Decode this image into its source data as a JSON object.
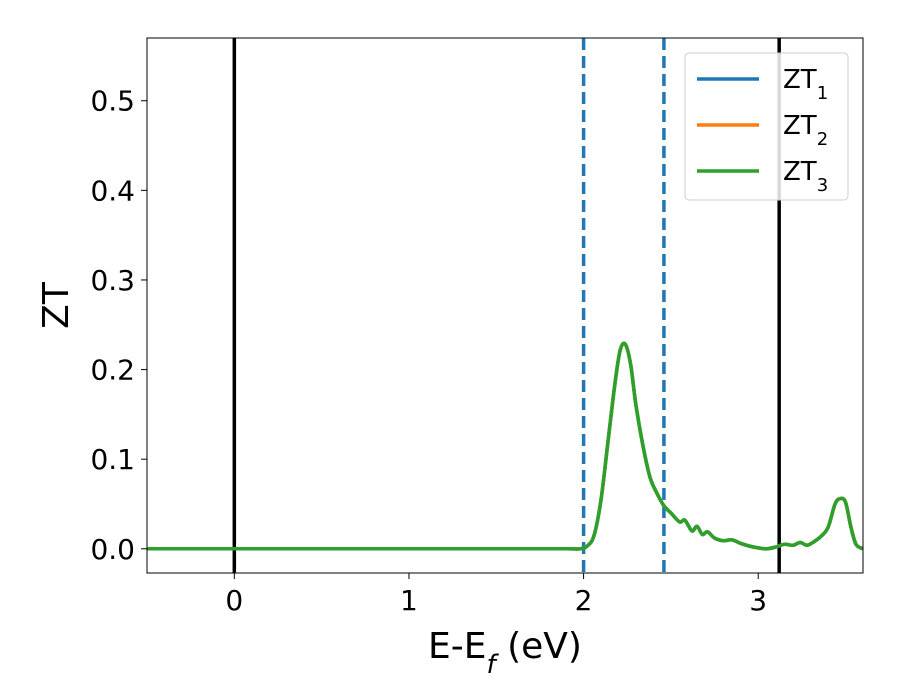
{
  "chart_data": {
    "type": "line",
    "xlabel": "E-E",
    "xlabel_sub": "f",
    "xlabel_unit": " (eV)",
    "ylabel": "ZT",
    "xlim": [
      -0.5,
      3.6
    ],
    "ylim": [
      -0.027,
      0.57
    ],
    "xticks": [
      0,
      1,
      2,
      3
    ],
    "yticks": [
      0.0,
      0.1,
      0.2,
      0.3,
      0.4,
      0.5
    ],
    "xtick_labels": [
      "0",
      "1",
      "2",
      "3"
    ],
    "ytick_labels": [
      "0.0",
      "0.1",
      "0.2",
      "0.3",
      "0.4",
      "0.5"
    ],
    "grid": false,
    "legend_position": "top-right",
    "vlines": [
      {
        "x": 0.0,
        "style": "solid",
        "color": "#000000"
      },
      {
        "x": 3.12,
        "style": "solid",
        "color": "#000000"
      },
      {
        "x": 2.0,
        "style": "dashed",
        "color": "#1f77b4"
      },
      {
        "x": 2.46,
        "style": "dashed",
        "color": "#1f77b4"
      }
    ],
    "legend": [
      {
        "label": "ZT",
        "sub": "1",
        "color": "#1f77b4"
      },
      {
        "label": "ZT",
        "sub": "2",
        "color": "#ff7f0e"
      },
      {
        "label": "ZT",
        "sub": "3",
        "color": "#2ca02c"
      }
    ],
    "series": [
      {
        "name": "ZT1",
        "color": "#1f77b4",
        "x": [
          -0.5,
          0.0,
          0.5,
          1.0,
          1.5,
          1.9,
          1.98,
          2.02,
          2.06,
          2.1,
          2.14,
          2.18,
          2.21,
          2.24,
          2.27,
          2.3,
          2.34,
          2.38,
          2.42,
          2.46,
          2.5,
          2.55,
          2.58,
          2.62,
          2.65,
          2.68,
          2.71,
          2.75,
          2.8,
          2.85,
          2.9,
          2.95,
          3.0,
          3.05,
          3.1,
          3.15,
          3.2,
          3.24,
          3.28,
          3.32,
          3.36,
          3.4,
          3.44,
          3.47,
          3.5,
          3.53,
          3.56,
          3.6
        ],
        "values": [
          0,
          0,
          0,
          0,
          0,
          0,
          0.0,
          0.003,
          0.015,
          0.055,
          0.12,
          0.185,
          0.222,
          0.228,
          0.205,
          0.16,
          0.115,
          0.08,
          0.062,
          0.048,
          0.04,
          0.03,
          0.032,
          0.02,
          0.025,
          0.016,
          0.019,
          0.012,
          0.009,
          0.01,
          0.006,
          0.003,
          0.001,
          0.0,
          0.002,
          0.005,
          0.004,
          0.007,
          0.004,
          0.008,
          0.014,
          0.024,
          0.05,
          0.056,
          0.052,
          0.025,
          0.005,
          0.0
        ]
      },
      {
        "name": "ZT2",
        "color": "#ff7f0e",
        "x": [
          -0.5,
          0.0,
          0.5,
          1.0,
          1.5,
          1.9,
          1.98,
          2.02,
          2.06,
          2.1,
          2.14,
          2.18,
          2.21,
          2.24,
          2.27,
          2.3,
          2.34,
          2.38,
          2.42,
          2.46,
          2.5,
          2.55,
          2.58,
          2.62,
          2.65,
          2.68,
          2.71,
          2.75,
          2.8,
          2.85,
          2.9,
          2.95,
          3.0,
          3.05,
          3.1,
          3.15,
          3.2,
          3.24,
          3.28,
          3.32,
          3.36,
          3.4,
          3.44,
          3.47,
          3.5,
          3.53,
          3.56,
          3.6
        ],
        "values": [
          0,
          0,
          0,
          0,
          0,
          0,
          0.0,
          0.003,
          0.015,
          0.055,
          0.12,
          0.185,
          0.222,
          0.228,
          0.205,
          0.16,
          0.115,
          0.08,
          0.062,
          0.048,
          0.04,
          0.03,
          0.032,
          0.02,
          0.025,
          0.016,
          0.019,
          0.012,
          0.009,
          0.01,
          0.006,
          0.003,
          0.001,
          0.0,
          0.002,
          0.005,
          0.004,
          0.007,
          0.004,
          0.008,
          0.014,
          0.024,
          0.05,
          0.056,
          0.052,
          0.025,
          0.005,
          0.0
        ]
      },
      {
        "name": "ZT3",
        "color": "#2ca02c",
        "x": [
          -0.5,
          0.0,
          0.5,
          1.0,
          1.5,
          1.9,
          1.98,
          2.02,
          2.06,
          2.1,
          2.14,
          2.18,
          2.21,
          2.24,
          2.27,
          2.3,
          2.34,
          2.38,
          2.42,
          2.46,
          2.5,
          2.55,
          2.58,
          2.62,
          2.65,
          2.68,
          2.71,
          2.75,
          2.8,
          2.85,
          2.9,
          2.95,
          3.0,
          3.05,
          3.1,
          3.15,
          3.2,
          3.24,
          3.28,
          3.32,
          3.36,
          3.4,
          3.44,
          3.47,
          3.5,
          3.53,
          3.56,
          3.6
        ],
        "values": [
          0,
          0,
          0,
          0,
          0,
          0,
          0.0,
          0.003,
          0.015,
          0.055,
          0.12,
          0.185,
          0.222,
          0.228,
          0.205,
          0.16,
          0.115,
          0.08,
          0.062,
          0.048,
          0.04,
          0.03,
          0.032,
          0.02,
          0.025,
          0.016,
          0.019,
          0.012,
          0.009,
          0.01,
          0.006,
          0.003,
          0.001,
          0.0,
          0.002,
          0.005,
          0.004,
          0.007,
          0.004,
          0.008,
          0.014,
          0.024,
          0.05,
          0.056,
          0.052,
          0.025,
          0.005,
          0.0
        ]
      }
    ]
  }
}
